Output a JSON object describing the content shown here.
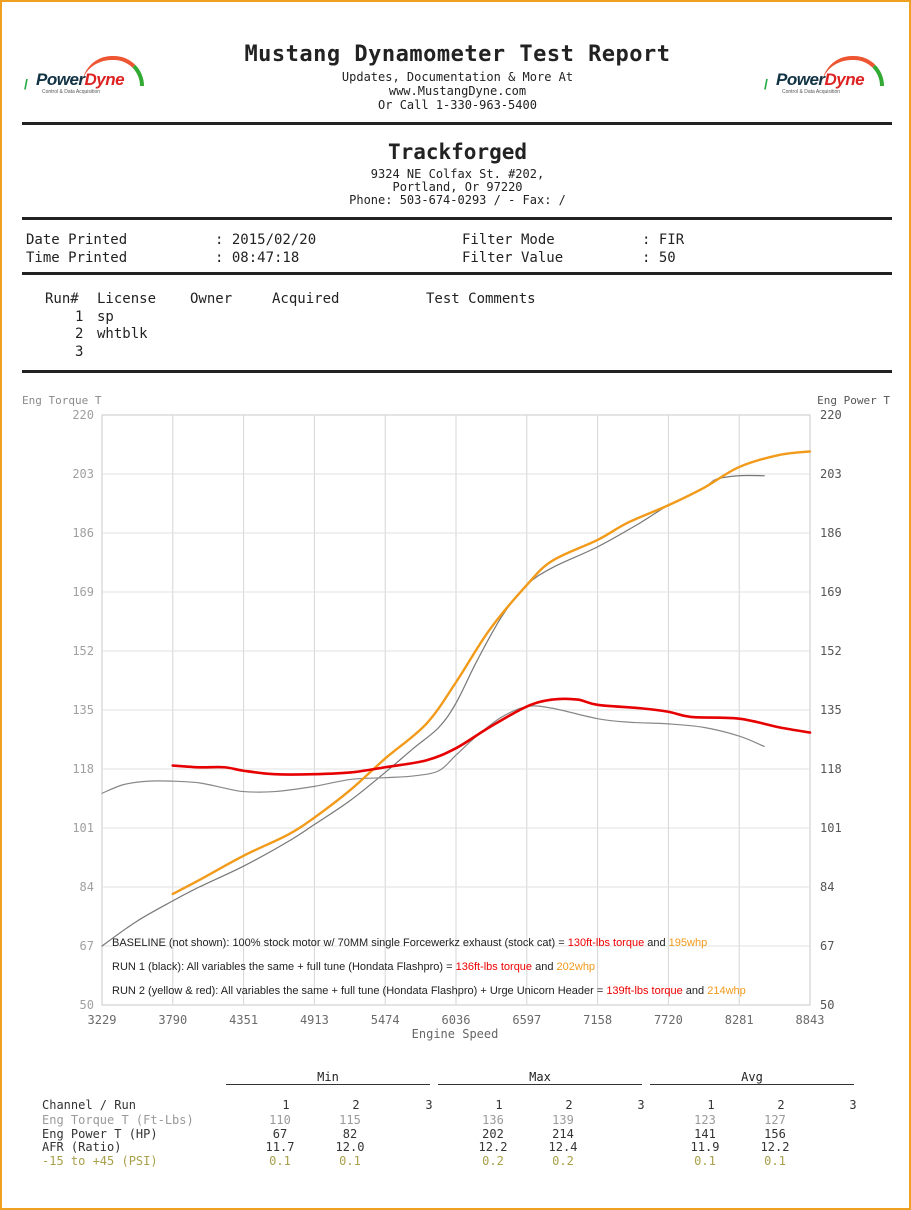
{
  "header": {
    "title": "Mustang Dynamometer Test Report",
    "lines": [
      "Updates, Documentation & More At",
      "www.MustangDyne.com",
      "Or Call 1-330-963-5400"
    ],
    "logo_word_a": "Power",
    "logo_word_b": "Dyne",
    "logo_tag": "Control & Data Acquisition"
  },
  "shop": {
    "name": "Trackforged",
    "address1": "9324 NE Colfax St. #202,",
    "address2": "Portland, Or  97220",
    "phone": "Phone: 503-674-0293 /  - Fax:  /"
  },
  "meta": {
    "date_label": "Date Printed",
    "date_value": ": 2015/02/20",
    "time_label": "Time Printed",
    "time_value": ": 08:47:18",
    "filter_mode_label": "Filter Mode",
    "filter_mode_value": ":  FIR",
    "filter_value_label": "Filter Value",
    "filter_value_value": ":  50"
  },
  "runs": {
    "headers": [
      "Run#",
      "License",
      "Owner",
      "Acquired",
      "Test Comments"
    ],
    "rows": [
      {
        "num": "1",
        "license": "sp"
      },
      {
        "num": "2",
        "license": "whtblk"
      },
      {
        "num": "3",
        "license": ""
      }
    ]
  },
  "chart_data": {
    "type": "line",
    "left_axis_label": "Eng Torque T",
    "right_axis_label": "Eng Power T",
    "xlabel": "Engine Speed",
    "xlim": [
      3229,
      8843
    ],
    "ylim": [
      50,
      220
    ],
    "x_ticks": [
      "3229",
      "3790",
      "4351",
      "4913",
      "5474",
      "6036",
      "6597",
      "7158",
      "7720",
      "8281",
      "8843"
    ],
    "y_ticks": [
      "220",
      "203",
      "186",
      "169",
      "152",
      "135",
      "118",
      "101",
      "84",
      "67",
      "50"
    ],
    "grid": true,
    "series": [
      {
        "label": "Run 1 power",
        "color": "#777777",
        "width": 1.2,
        "points": [
          [
            3229,
            67
          ],
          [
            3500,
            74
          ],
          [
            3790,
            80
          ],
          [
            4000,
            84
          ],
          [
            4351,
            90
          ],
          [
            4700,
            97
          ],
          [
            4913,
            102
          ],
          [
            5200,
            109
          ],
          [
            5474,
            117
          ],
          [
            5700,
            124
          ],
          [
            5900,
            130
          ],
          [
            6036,
            137
          ],
          [
            6200,
            149
          ],
          [
            6400,
            162
          ],
          [
            6597,
            171
          ],
          [
            6800,
            176
          ],
          [
            7158,
            182
          ],
          [
            7500,
            189
          ],
          [
            7720,
            194
          ],
          [
            8000,
            199
          ],
          [
            8100,
            201.5
          ],
          [
            8281,
            202.5
          ],
          [
            8480,
            202.5
          ]
        ]
      },
      {
        "label": "Run 1 torque",
        "color": "#888888",
        "width": 1.2,
        "points": [
          [
            3229,
            111
          ],
          [
            3400,
            113.5
          ],
          [
            3600,
            114.5
          ],
          [
            3790,
            114.5
          ],
          [
            4000,
            114
          ],
          [
            4200,
            112.5
          ],
          [
            4351,
            111.5
          ],
          [
            4600,
            111.5
          ],
          [
            4913,
            113
          ],
          [
            5200,
            115
          ],
          [
            5474,
            115.5
          ],
          [
            5700,
            116
          ],
          [
            5900,
            117.5
          ],
          [
            6036,
            122
          ],
          [
            6200,
            127.5
          ],
          [
            6400,
            133
          ],
          [
            6597,
            136
          ],
          [
            6800,
            135.5
          ],
          [
            7158,
            132.5
          ],
          [
            7400,
            131.5
          ],
          [
            7720,
            131
          ],
          [
            8000,
            130
          ],
          [
            8281,
            127.5
          ],
          [
            8480,
            124.5
          ]
        ]
      },
      {
        "label": "Run 2 power",
        "color": "#f29a1a",
        "width": 2.4,
        "points": [
          [
            3790,
            82
          ],
          [
            4000,
            86
          ],
          [
            4351,
            93
          ],
          [
            4700,
            99
          ],
          [
            4913,
            104
          ],
          [
            5200,
            112
          ],
          [
            5474,
            121
          ],
          [
            5800,
            131
          ],
          [
            6036,
            143
          ],
          [
            6300,
            158
          ],
          [
            6597,
            171
          ],
          [
            6800,
            178
          ],
          [
            7158,
            184
          ],
          [
            7400,
            189
          ],
          [
            7720,
            194
          ],
          [
            8000,
            199
          ],
          [
            8281,
            205
          ],
          [
            8600,
            208.5
          ],
          [
            8843,
            209.5
          ]
        ]
      },
      {
        "label": "Run 2 torque",
        "color": "#e60000",
        "width": 2.6,
        "points": [
          [
            3790,
            119
          ],
          [
            4000,
            118.5
          ],
          [
            4200,
            118.5
          ],
          [
            4351,
            117.5
          ],
          [
            4600,
            116.5
          ],
          [
            4913,
            116.5
          ],
          [
            5200,
            117
          ],
          [
            5474,
            118.5
          ],
          [
            5800,
            120.5
          ],
          [
            6036,
            124
          ],
          [
            6300,
            130
          ],
          [
            6597,
            136
          ],
          [
            6800,
            138
          ],
          [
            7000,
            138
          ],
          [
            7158,
            136.5
          ],
          [
            7500,
            135.5
          ],
          [
            7720,
            134.5
          ],
          [
            7900,
            133
          ],
          [
            8281,
            132.5
          ],
          [
            8600,
            130
          ],
          [
            8843,
            128.5
          ]
        ]
      }
    ],
    "annotations": {
      "a1": "BASELINE (not shown): 100% stock motor w/ 70MM single Forcewerkz exhaust (stock cat) = ",
      "a1_torque": "130ft-lbs torque",
      "a1_and": " and ",
      "a1_power": "195whp",
      "a2": "RUN 1 (black):  All variables the same + full tune (Hondata Flashpro) = ",
      "a2_torque": "136ft-lbs torque",
      "a2_and": " and ",
      "a2_power": "202whp",
      "a3": "RUN 2 (yellow & red):  All variables the same + full tune (Hondata Flashpro) + Urge Unicorn Header = ",
      "a3_torque": "139ft-lbs torque",
      "a3_and": " and ",
      "a3_power": "214whp"
    }
  },
  "summary": {
    "groups": [
      "Min",
      "Max",
      "Avg"
    ],
    "channel_header": "Channel / Run",
    "run_headers": [
      "1",
      "2",
      "3"
    ],
    "rows": [
      {
        "name": "Eng Torque T (Ft-Lbs)",
        "tone": "grey",
        "min": [
          "110",
          "115",
          ""
        ],
        "max": [
          "136",
          "139",
          ""
        ],
        "avg": [
          "123",
          "127",
          ""
        ]
      },
      {
        "name": "Eng Power T (HP)",
        "tone": "dark",
        "min": [
          "67",
          "82",
          ""
        ],
        "max": [
          "202",
          "214",
          ""
        ],
        "avg": [
          "141",
          "156",
          ""
        ]
      },
      {
        "name": "AFR (Ratio)",
        "tone": "dark",
        "min": [
          "11.7",
          "12.0",
          ""
        ],
        "max": [
          "12.2",
          "12.4",
          ""
        ],
        "avg": [
          "11.9",
          "12.2",
          ""
        ]
      },
      {
        "name": "-15 to +45 (PSI)",
        "tone": "olive",
        "min": [
          "0.1",
          "0.1",
          ""
        ],
        "max": [
          "0.2",
          "0.2",
          ""
        ],
        "avg": [
          "0.1",
          "0.1",
          ""
        ]
      }
    ]
  }
}
